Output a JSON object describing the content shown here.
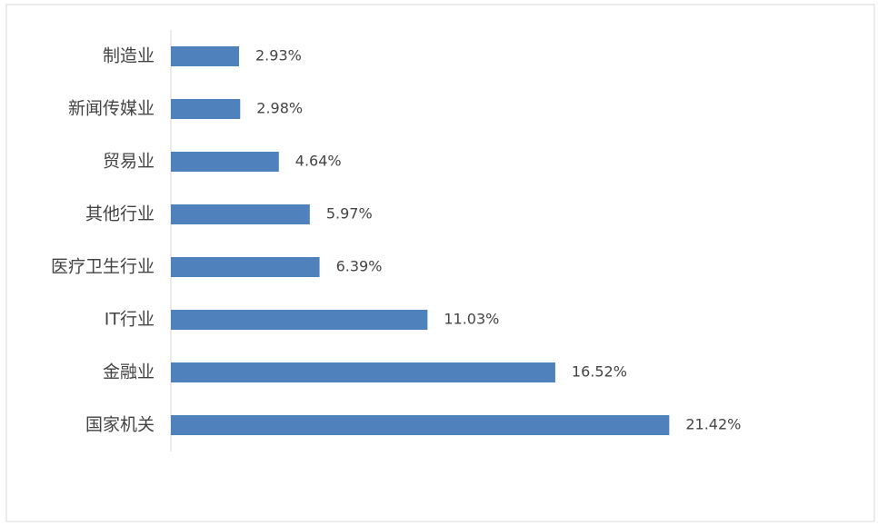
{
  "chart_data": {
    "type": "bar",
    "orientation": "horizontal",
    "categories": [
      "制造业",
      "新闻传媒业",
      "贸易业",
      "其他行业",
      "医疗卫生行业",
      "IT行业",
      "金融业",
      "国家机关"
    ],
    "values": [
      2.93,
      2.98,
      4.64,
      5.97,
      6.39,
      11.03,
      16.52,
      21.42
    ],
    "value_labels": [
      "2.93%",
      "2.98%",
      "4.64%",
      "5.97%",
      "6.39%",
      "11.03%",
      "16.52%",
      "21.42%"
    ],
    "color": "#4f81bd"
  }
}
